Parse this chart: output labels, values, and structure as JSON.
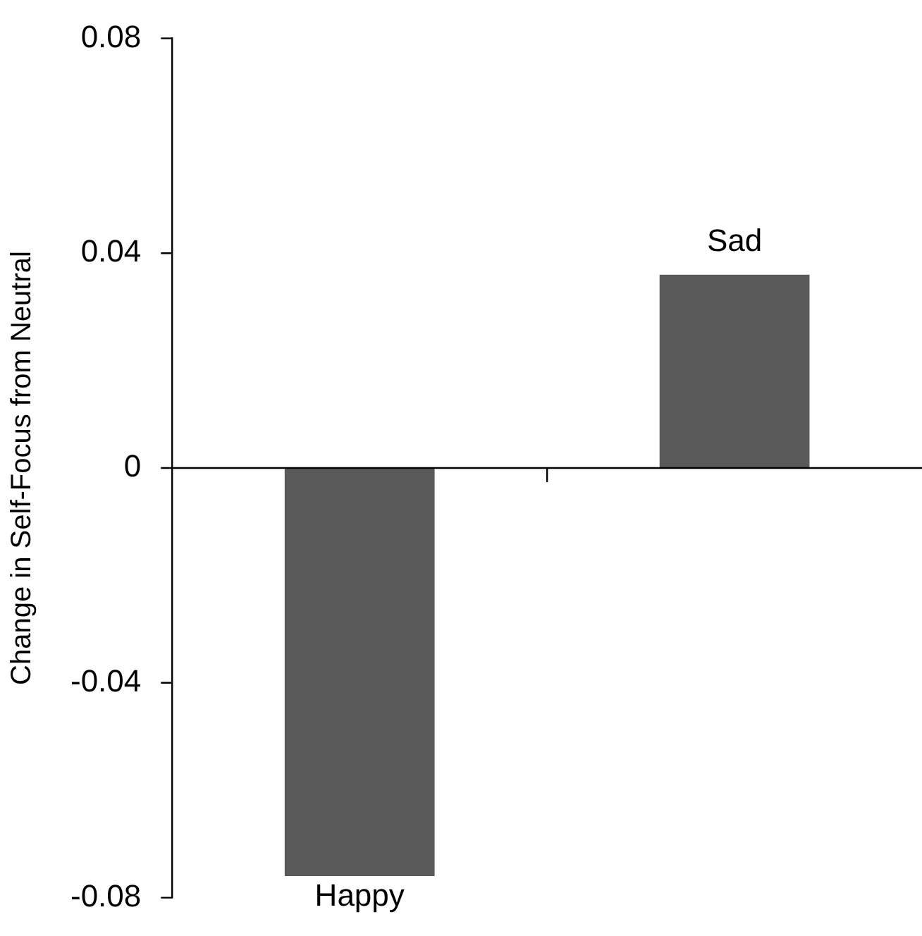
{
  "chart_data": {
    "type": "bar",
    "ylabel": "Change in Self-Focus from Neutral",
    "categories": [
      "Happy",
      "Sad"
    ],
    "values": [
      -0.076,
      0.036
    ],
    "color": "#5a5a5a",
    "ylim": [
      -0.08,
      0.08
    ],
    "yticks": [
      -0.08,
      -0.04,
      0,
      0.04,
      0.08
    ]
  }
}
